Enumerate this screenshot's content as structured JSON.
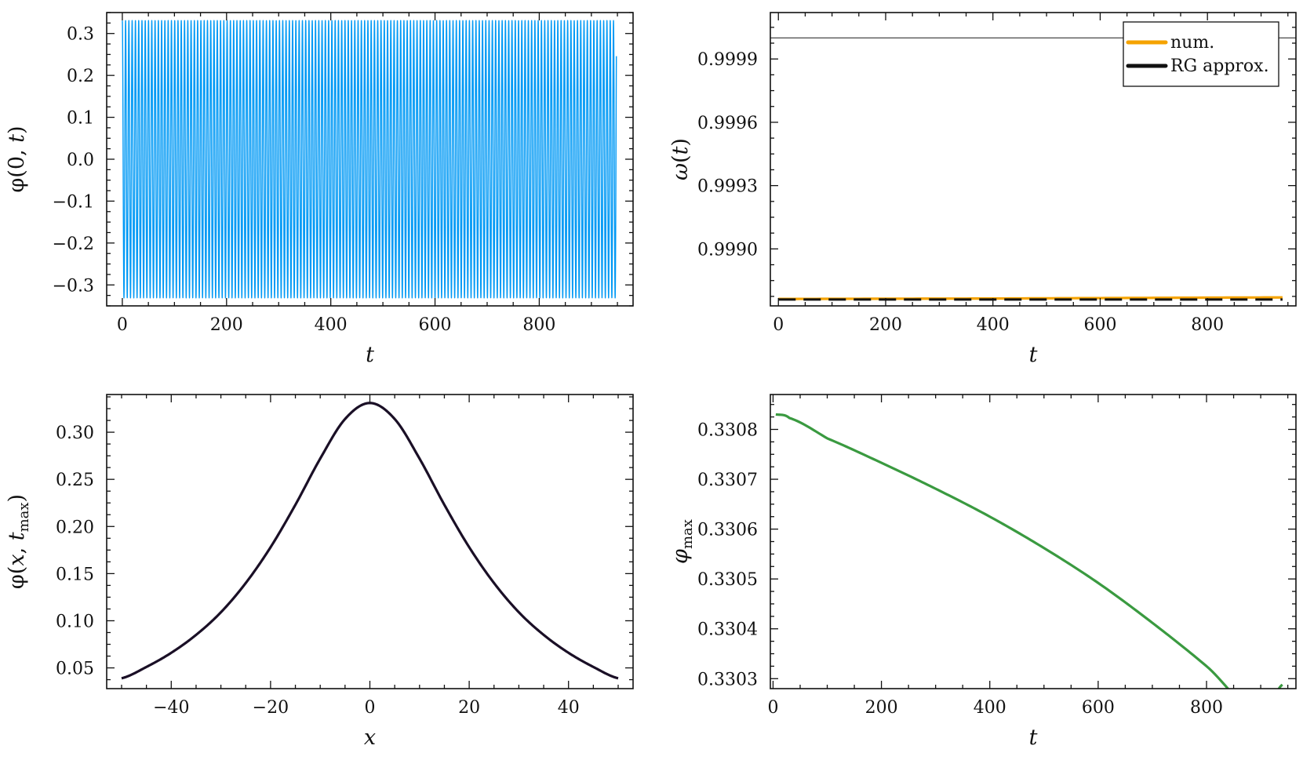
{
  "chart_data": [
    {
      "type": "line",
      "id": "p1",
      "xlabel": "t",
      "ylabel": "φ(0, t)",
      "xlim": [
        -30,
        980
      ],
      "ylim": [
        -0.35,
        0.35
      ],
      "xticks": [
        0,
        200,
        400,
        600,
        800
      ],
      "xtick_labels": [
        "0",
        "200",
        "400",
        "600",
        "800"
      ],
      "yticks": [
        -0.3,
        -0.2,
        -0.1,
        0.0,
        0.1,
        0.2,
        0.3
      ],
      "ytick_labels": [
        "−0.3",
        "−0.2",
        "−0.1",
        "0.0",
        "0.1",
        "0.2",
        "0.3"
      ],
      "grid": false,
      "series": [
        {
          "color": "#0099f5",
          "oscillation": {
            "t_start": 0,
            "t_end": 948,
            "amplitude": 0.331,
            "period": 6.283
          }
        }
      ]
    },
    {
      "type": "line",
      "id": "p2",
      "xlabel": "t",
      "ylabel": "ω(t)",
      "xlim": [
        -15,
        965
      ],
      "ylim": [
        0.99873,
        1.00012
      ],
      "xticks": [
        0,
        200,
        400,
        600,
        800
      ],
      "xtick_labels": [
        "0",
        "200",
        "400",
        "600",
        "800"
      ],
      "yticks": [
        0.999,
        0.9993,
        0.9996,
        0.9999
      ],
      "ytick_labels": [
        "0.9990",
        "0.9993",
        "0.9996",
        "0.9999"
      ],
      "grid": false,
      "reference_line": {
        "y": 1.0,
        "color": "#333333"
      },
      "legend_position": "top-right",
      "series": [
        {
          "name": "num.",
          "color": "#f5a300",
          "x": [
            0,
            200,
            400,
            600,
            800,
            940
          ],
          "y": [
            0.998763,
            0.998764,
            0.998765,
            0.998767,
            0.998769,
            0.99877
          ]
        },
        {
          "name": "RG approx.",
          "color": "#111111",
          "dashed": true,
          "x": [
            0,
            940
          ],
          "y": [
            0.99876,
            0.99876
          ]
        }
      ]
    },
    {
      "type": "line",
      "id": "p3",
      "xlabel": "x",
      "ylabel": "φ(x, t_max)",
      "xlim": [
        -53,
        53
      ],
      "ylim": [
        0.028,
        0.34
      ],
      "xticks": [
        -40,
        -20,
        0,
        20,
        40
      ],
      "xtick_labels": [
        "−40",
        "−20",
        "0",
        "20",
        "40"
      ],
      "yticks": [
        0.05,
        0.1,
        0.15,
        0.2,
        0.25,
        0.3
      ],
      "ytick_labels": [
        "0.05",
        "0.10",
        "0.15",
        "0.20",
        "0.25",
        "0.30"
      ],
      "grid": false,
      "series": [
        {
          "color": "#1a0f26",
          "x": [
            -50,
            -45,
            -40,
            -35,
            -30,
            -25,
            -20,
            -15,
            -10,
            -5,
            0,
            5,
            10,
            15,
            20,
            25,
            30,
            35,
            40,
            45,
            50
          ],
          "y": [
            0.039,
            0.051,
            0.066,
            0.085,
            0.109,
            0.14,
            0.178,
            0.223,
            0.272,
            0.314,
            0.331,
            0.314,
            0.272,
            0.223,
            0.178,
            0.14,
            0.109,
            0.085,
            0.066,
            0.051,
            0.039
          ]
        }
      ]
    },
    {
      "type": "line",
      "id": "p4",
      "xlabel": "t",
      "ylabel": "φmax",
      "xlim": [
        -5,
        965
      ],
      "ylim": [
        0.33028,
        0.33087
      ],
      "xticks": [
        0,
        200,
        400,
        600,
        800
      ],
      "xtick_labels": [
        "0",
        "200",
        "400",
        "600",
        "800"
      ],
      "yticks": [
        0.3303,
        0.3304,
        0.3305,
        0.3306,
        0.3307,
        0.3308
      ],
      "ytick_labels": [
        "0.3303",
        "0.3304",
        "0.3305",
        "0.3306",
        "0.3307",
        "0.3308"
      ],
      "grid": false,
      "series": [
        {
          "color": "#3a9a40",
          "x": [
            5,
            30,
            100,
            200,
            300,
            400,
            500,
            600,
            700,
            800,
            900,
            940
          ],
          "y": [
            0.33083,
            0.330823,
            0.330782,
            0.330733,
            0.330681,
            0.330625,
            0.330562,
            0.330492,
            0.330412,
            0.330325,
            0.330228,
            0.330288
          ]
        }
      ]
    }
  ]
}
